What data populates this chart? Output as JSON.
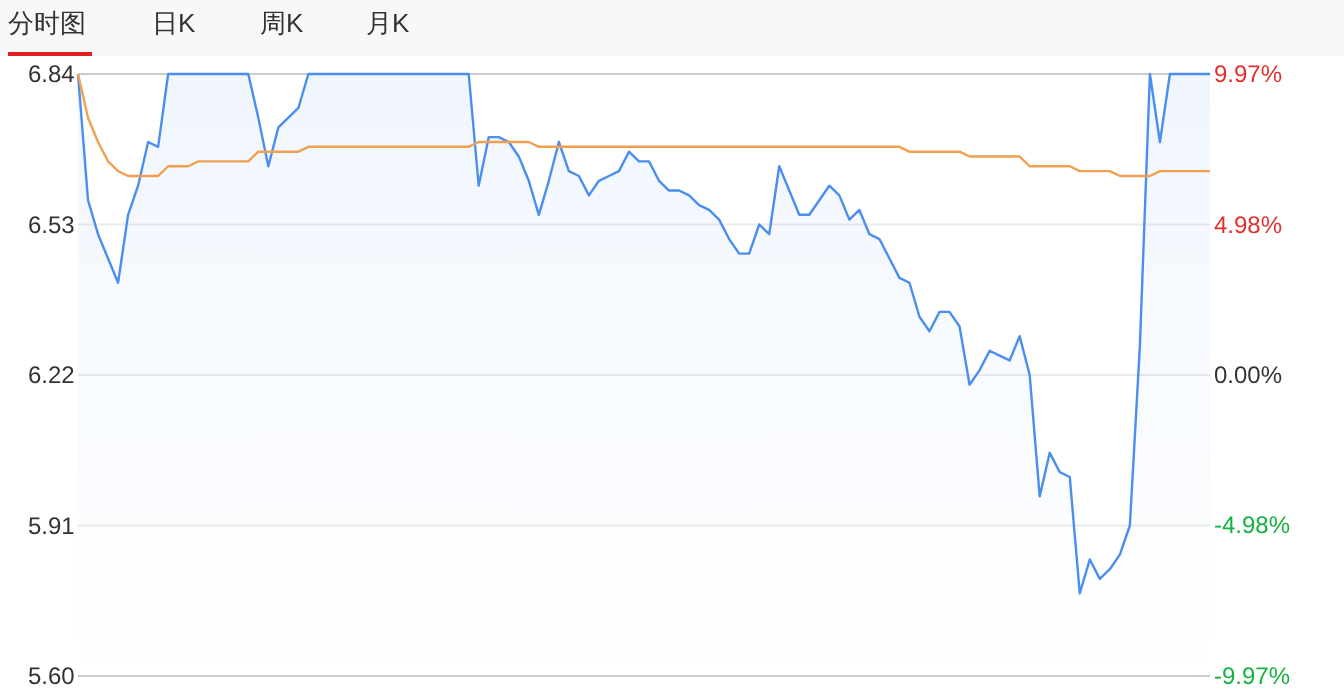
{
  "chart_data": {
    "type": "line",
    "annotations": [
      "分时图",
      "日K",
      "周K",
      "月K"
    ],
    "categories": [
      null,
      null,
      null,
      null,
      null,
      null,
      null,
      null,
      null,
      null,
      null,
      null,
      null,
      null,
      null,
      null,
      null,
      null,
      null,
      null,
      null,
      null,
      null,
      null,
      null,
      null,
      null,
      null,
      null,
      null,
      null,
      null,
      null,
      null,
      null,
      null,
      null,
      null,
      null,
      null,
      null,
      null,
      null,
      null,
      null,
      null,
      null,
      null,
      null,
      null,
      null,
      null,
      null,
      null,
      null,
      null,
      null,
      null,
      null,
      null,
      null,
      null,
      null,
      null,
      null,
      null,
      null,
      null,
      null,
      null,
      null,
      null,
      null,
      null,
      null,
      null,
      null,
      null,
      null,
      null,
      null,
      null,
      null,
      null,
      null,
      null,
      null,
      null,
      null,
      null,
      null,
      null,
      null,
      null,
      null,
      null,
      null,
      null,
      null,
      null,
      null,
      null,
      null,
      null,
      null,
      null,
      null,
      null,
      null,
      null,
      null,
      null,
      null,
      null
    ],
    "ylim": [
      5.6,
      6.84
    ],
    "yticks": [
      {
        "value": 5.6,
        "label": "5.60"
      },
      {
        "value": 5.91,
        "label": "5.91"
      },
      {
        "value": 6.22,
        "label": "6.22"
      },
      {
        "value": 6.53,
        "label": "6.53"
      },
      {
        "value": 6.84,
        "label": "6.84"
      }
    ],
    "y2lim": [
      -9.97,
      9.97
    ],
    "y2ticks": [
      {
        "value": -9.97,
        "label": "-9.97%"
      },
      {
        "value": -4.98,
        "label": "-4.98%"
      },
      {
        "value": 0,
        "label": "0.00%"
      },
      {
        "value": 4.98,
        "label": "4.98%"
      },
      {
        "value": 9.97,
        "label": "9.97%"
      }
    ],
    "grid": "y",
    "series": [
      {
        "type": "area",
        "color": "#4a8ef0",
        "values": [
          6.84,
          6.58,
          6.51,
          6.46,
          6.41,
          6.55,
          6.61,
          6.7,
          6.69,
          6.84,
          6.84,
          6.84,
          6.84,
          6.84,
          6.84,
          6.84,
          6.84,
          6.84,
          6.75,
          6.65,
          6.73,
          6.75,
          6.77,
          6.84,
          6.84,
          6.84,
          6.84,
          6.84,
          6.84,
          6.84,
          6.84,
          6.84,
          6.84,
          6.84,
          6.84,
          6.84,
          6.84,
          6.84,
          6.84,
          6.84,
          6.61,
          6.71,
          6.71,
          6.7,
          6.67,
          6.62,
          6.55,
          6.62,
          6.7,
          6.64,
          6.63,
          6.59,
          6.62,
          6.63,
          6.64,
          6.68,
          6.66,
          6.66,
          6.62,
          6.6,
          6.6,
          6.59,
          6.57,
          6.56,
          6.54,
          6.5,
          6.47,
          6.47,
          6.53,
          6.51,
          6.65,
          6.6,
          6.55,
          6.55,
          6.58,
          6.61,
          6.59,
          6.54,
          6.56,
          6.51,
          6.5,
          6.46,
          6.42,
          6.41,
          6.34,
          6.31,
          6.35,
          6.35,
          6.32,
          6.2,
          6.23,
          6.27,
          6.26,
          6.25,
          6.3,
          6.22,
          5.97,
          6.06,
          6.02,
          6.01,
          5.77,
          5.84,
          5.8,
          5.82,
          5.85,
          5.91,
          6.28,
          6.84,
          6.7,
          6.84,
          6.84,
          6.84,
          6.84,
          6.84
        ]
      },
      {
        "color": "#f0a050",
        "values": [
          6.84,
          6.75,
          6.7,
          6.66,
          6.64,
          6.63,
          6.63,
          6.63,
          6.63,
          6.65,
          6.65,
          6.65,
          6.66,
          6.66,
          6.66,
          6.66,
          6.66,
          6.66,
          6.68,
          6.68,
          6.68,
          6.68,
          6.68,
          6.69,
          6.69,
          6.69,
          6.69,
          6.69,
          6.69,
          6.69,
          6.69,
          6.69,
          6.69,
          6.69,
          6.69,
          6.69,
          6.69,
          6.69,
          6.69,
          6.69,
          6.7,
          6.7,
          6.7,
          6.7,
          6.7,
          6.7,
          6.69,
          6.69,
          6.69,
          6.69,
          6.69,
          6.69,
          6.69,
          6.69,
          6.69,
          6.69,
          6.69,
          6.69,
          6.69,
          6.69,
          6.69,
          6.69,
          6.69,
          6.69,
          6.69,
          6.69,
          6.69,
          6.69,
          6.69,
          6.69,
          6.69,
          6.69,
          6.69,
          6.69,
          6.69,
          6.69,
          6.69,
          6.69,
          6.69,
          6.69,
          6.69,
          6.69,
          6.69,
          6.68,
          6.68,
          6.68,
          6.68,
          6.68,
          6.68,
          6.67,
          6.67,
          6.67,
          6.67,
          6.67,
          6.67,
          6.65,
          6.65,
          6.65,
          6.65,
          6.65,
          6.64,
          6.64,
          6.64,
          6.64,
          6.63,
          6.63,
          6.63,
          6.63,
          6.64,
          6.64,
          6.64,
          6.64,
          6.64,
          6.64
        ]
      }
    ]
  }
}
